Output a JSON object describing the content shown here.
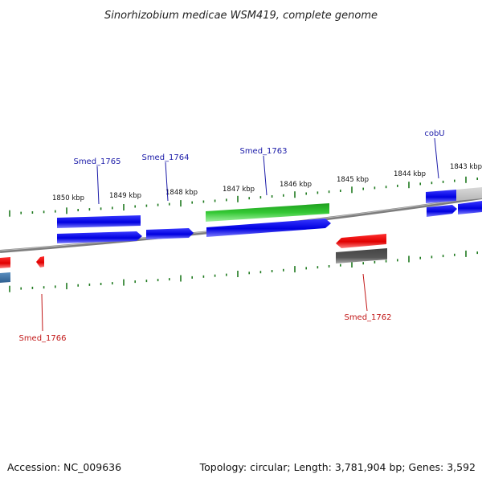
{
  "title": "Sinorhizobium medicae WSM419, complete genome",
  "footer": {
    "accession": "Accession: NC_009636",
    "summary": "Topology: circular; Length: 3,781,904 bp; Genes: 3,592"
  },
  "scale_labels": [
    "1850 kbp",
    "1849 kbp",
    "1848 kbp",
    "1847 kbp",
    "1846 kbp",
    "1845 kbp",
    "1844 kbp",
    "1843 kbp"
  ],
  "gene_labels": {
    "smed_1765": "Smed_1765",
    "smed_1764": "Smed_1764",
    "smed_1763": "Smed_1763",
    "cobu": "cobU",
    "smed_1766": "Smed_1766",
    "smed_1762": "Smed_1762"
  },
  "colors": {
    "forward_gene": "#0a0ad8",
    "reverse_gene": "#e01010",
    "highlight_gene": "#2fbf2f",
    "pseudo_gene": "#555555",
    "tick": "#1f7a1f",
    "backbone": "#7a7a7a"
  }
}
